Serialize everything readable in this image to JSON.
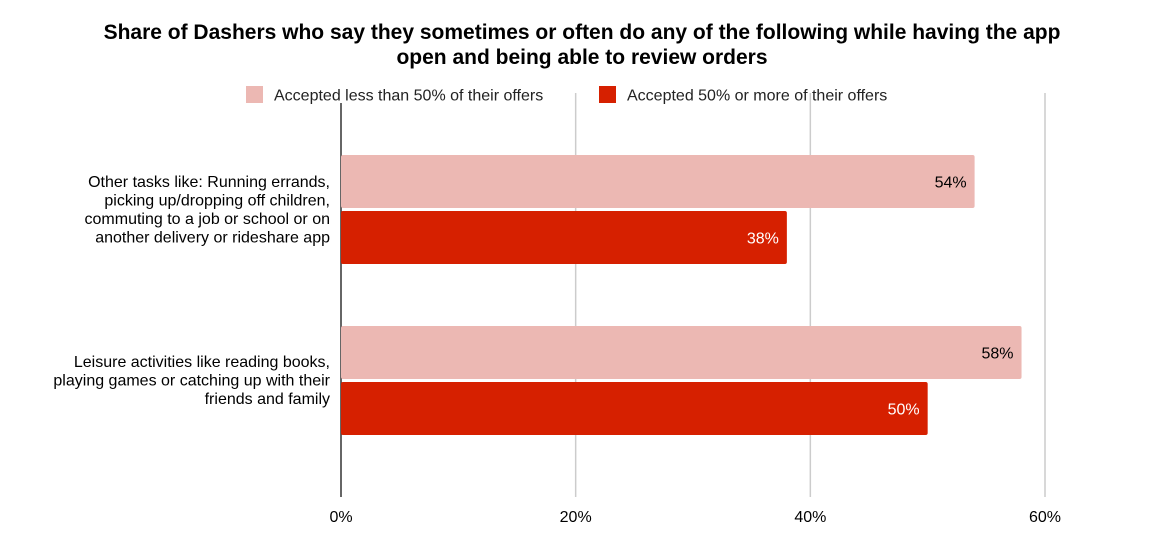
{
  "chart_data": {
    "type": "bar",
    "orientation": "horizontal",
    "title": "Share of Dashers who say they sometimes or often do any of the following while having the app open and being able to review orders",
    "title_lines": [
      "Share of Dashers who say they sometimes or often do any of the following while having the app",
      "open and being able to review orders"
    ],
    "categories": [
      "Other tasks like: Running errands, picking up/dropping off children, commuting to a job or school or on another delivery or rideshare app",
      "Leisure activities like reading books, playing games or catching up with their friends and family"
    ],
    "category_lines": [
      [
        "Other tasks like: Running errands,",
        "picking up/dropping off children,",
        "commuting to a job or school or on",
        "another delivery or rideshare app"
      ],
      [
        "Leisure activities like reading books,",
        "playing games or catching up with their",
        "friends and family"
      ]
    ],
    "series": [
      {
        "name": "Accepted less than 50% of their offers",
        "values": [
          54,
          58
        ],
        "labels": [
          "54%",
          "58%"
        ],
        "color": "#ecb8b3",
        "label_color": "#000000"
      },
      {
        "name": "Accepted 50% or more of their offers",
        "values": [
          38,
          50
        ],
        "labels": [
          "38%",
          "50%"
        ],
        "color": "#d62000",
        "label_color": "#ffffff"
      }
    ],
    "xlim": [
      0,
      60
    ],
    "xticks": [
      0,
      20,
      40,
      60
    ],
    "xtick_labels": [
      "0%",
      "20%",
      "40%",
      "60%"
    ],
    "legend_position": "top",
    "grid": true
  }
}
